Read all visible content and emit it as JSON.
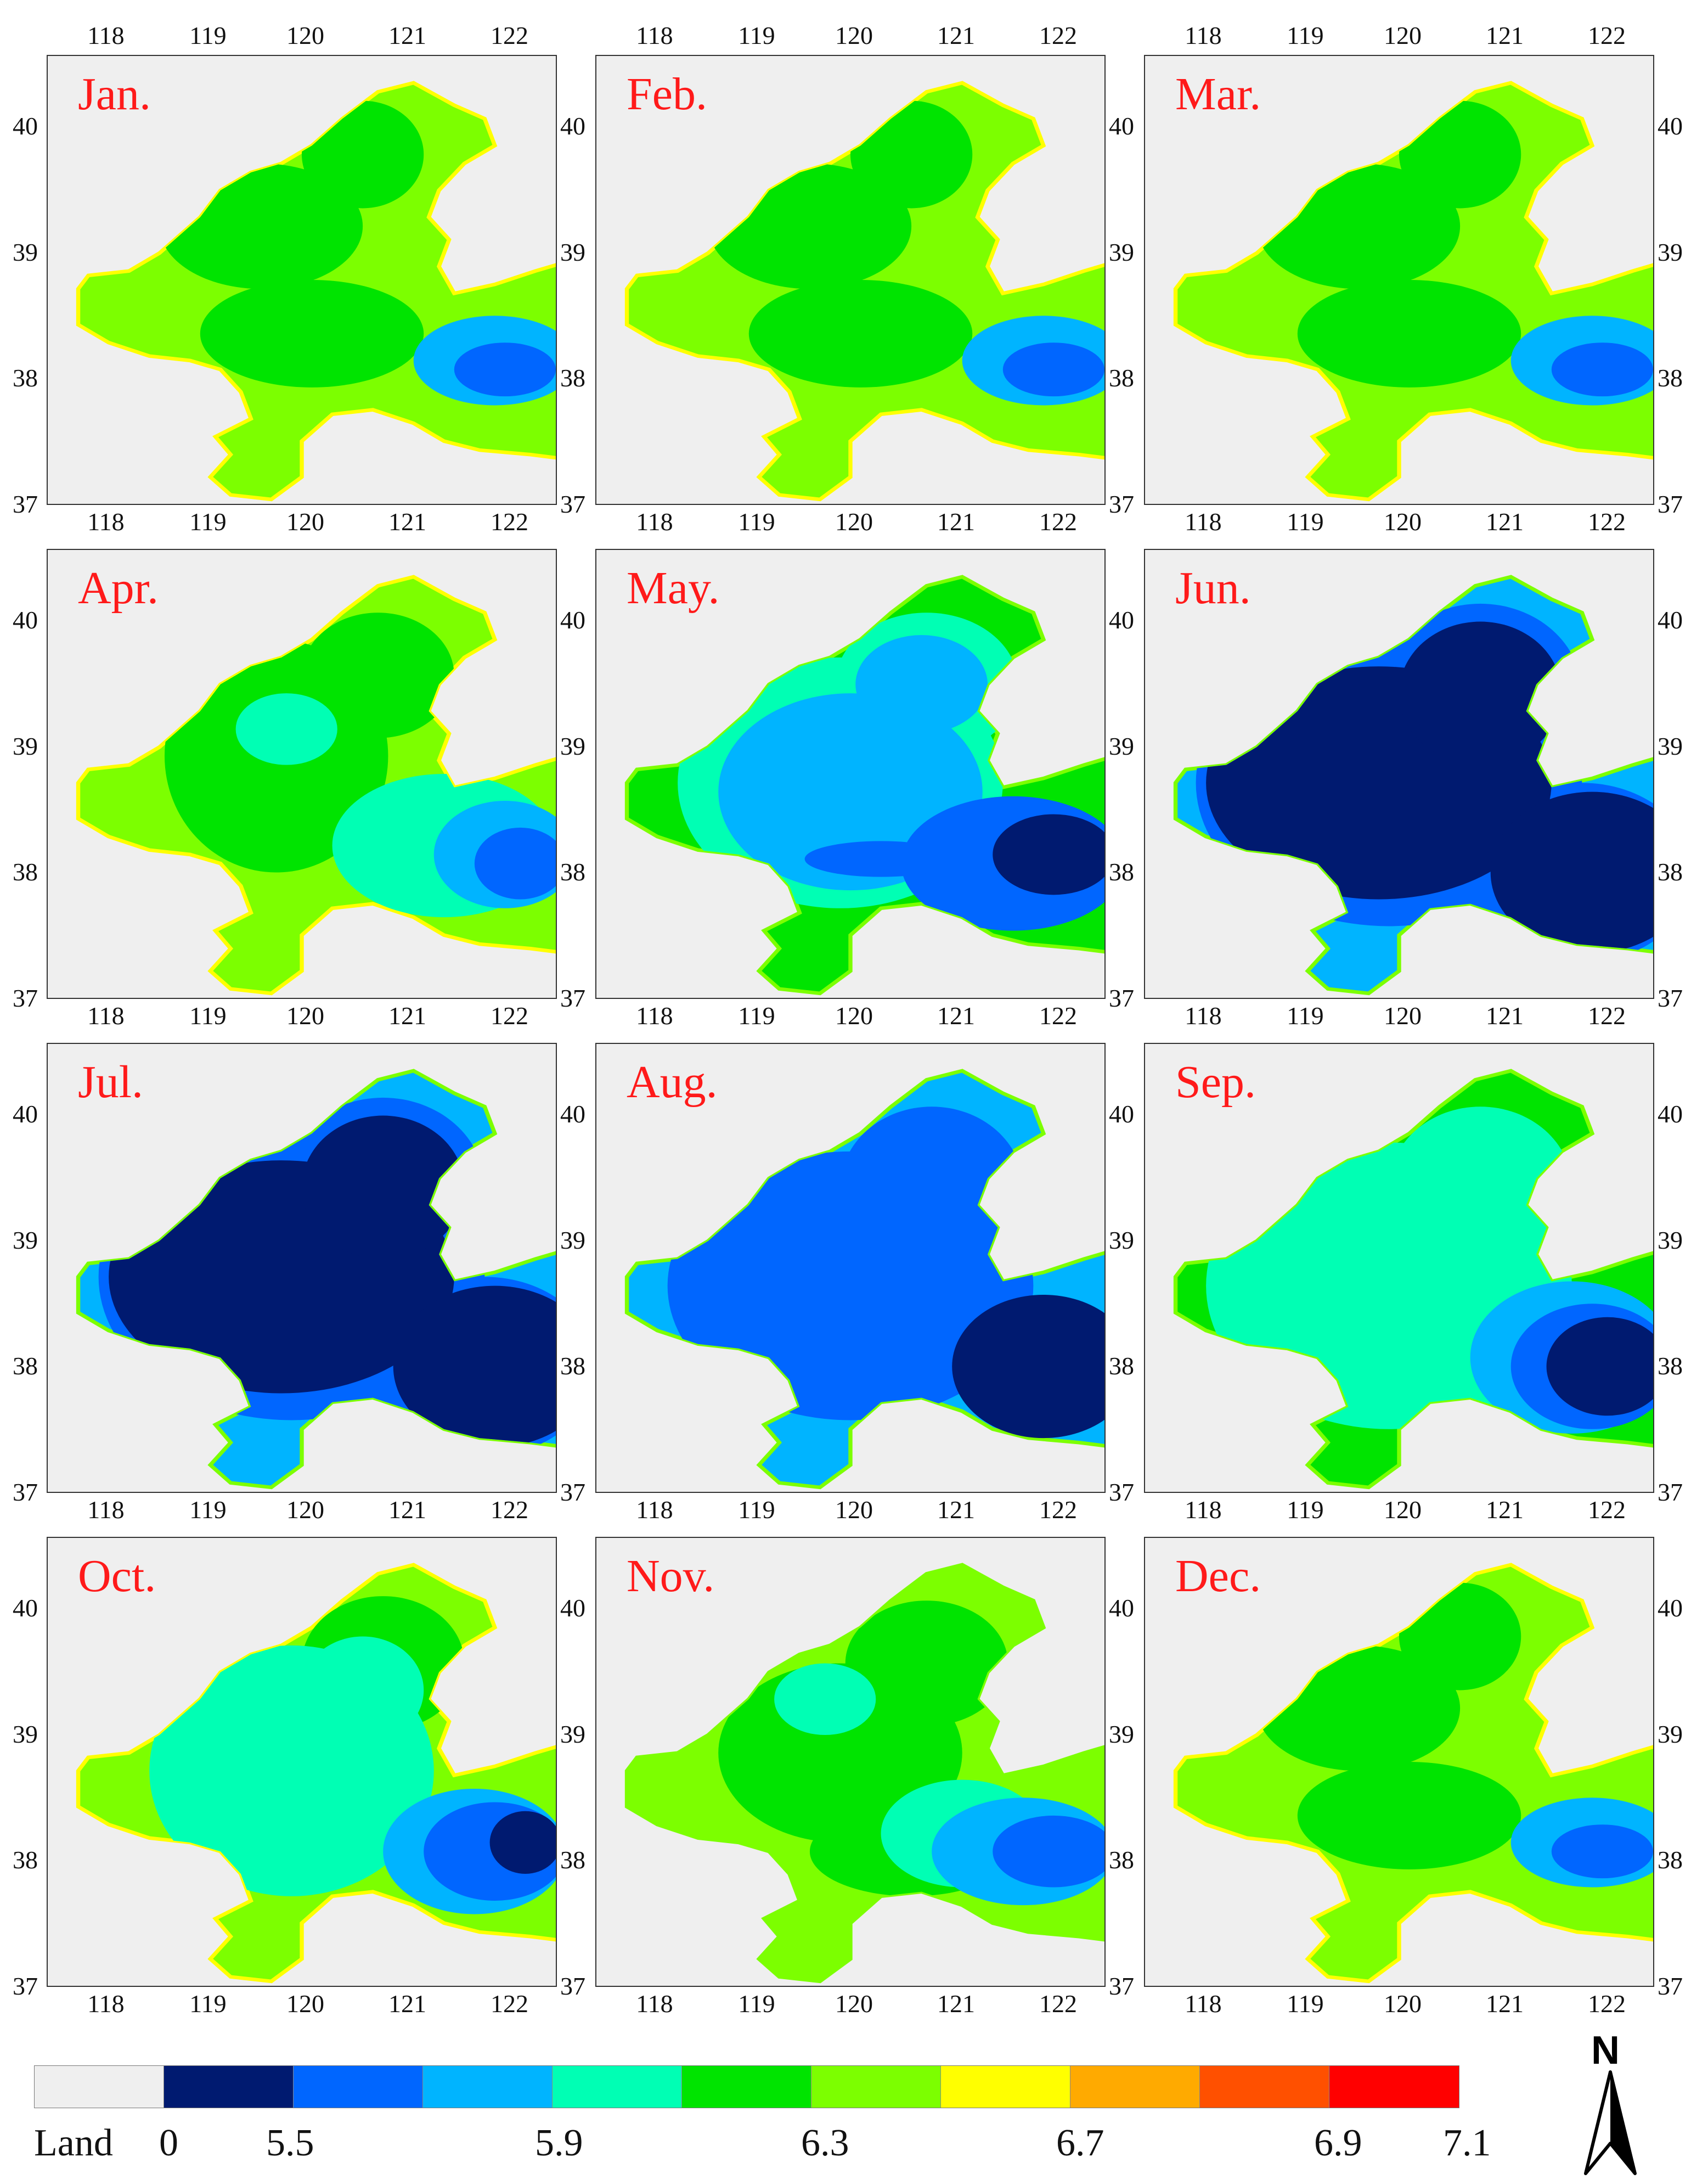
{
  "maps": [
    {
      "month": "Jan.",
      "type": "winter"
    },
    {
      "month": "Feb.",
      "type": "winter"
    },
    {
      "month": "Mar.",
      "type": "winter"
    },
    {
      "month": "Apr.",
      "type": "spring"
    },
    {
      "month": "May.",
      "type": "may"
    },
    {
      "month": "Jun.",
      "type": "summer"
    },
    {
      "month": "Jul.",
      "type": "summer"
    },
    {
      "month": "Aug.",
      "type": "aug"
    },
    {
      "month": "Sep.",
      "type": "sep"
    },
    {
      "month": "Oct.",
      "type": "oct"
    },
    {
      "month": "Nov.",
      "type": "nov"
    },
    {
      "month": "Dec.",
      "type": "winter"
    }
  ],
  "axes": {
    "lon_ticks": [
      "118",
      "119",
      "120",
      "121",
      "122"
    ],
    "lat_ticks": [
      "40",
      "39",
      "38",
      "37"
    ]
  },
  "legend": {
    "colors": [
      "#efefef",
      "#001a70",
      "#0066ff",
      "#00b4ff",
      "#00ffb4",
      "#00e400",
      "#7cff00",
      "#ffff00",
      "#ffaa00",
      "#ff5000",
      "#ff0000"
    ],
    "labels": [
      "Land",
      "0",
      "5.5",
      "5.9",
      "6.3",
      "6.7",
      "6.9",
      "7.1"
    ]
  },
  "north_label": "N"
}
